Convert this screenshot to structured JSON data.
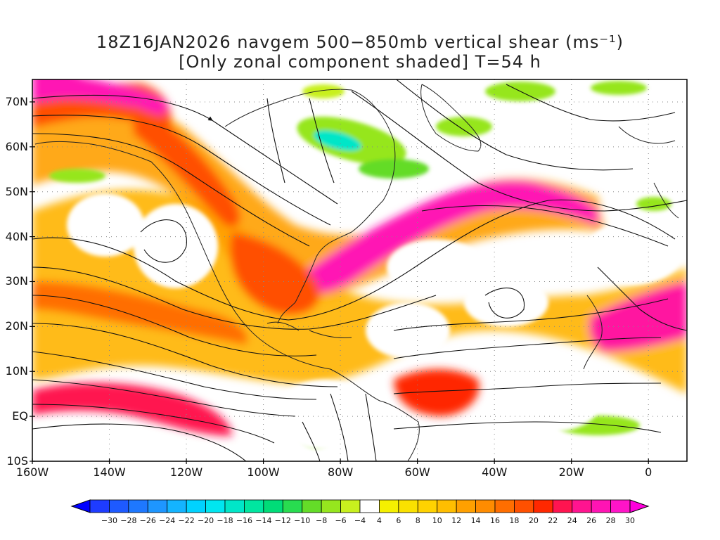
{
  "title": {
    "line1": "18Z16JAN2026 navgem 500−850mb vertical shear (ms⁻¹)",
    "line2": "[Only zonal component shaded] T=54 h"
  },
  "map": {
    "lon_range": [
      -160,
      10
    ],
    "lat_range": [
      -10,
      75
    ],
    "y_ticks": [
      {
        "lat": 70,
        "label": "70N"
      },
      {
        "lat": 60,
        "label": "60N"
      },
      {
        "lat": 50,
        "label": "50N"
      },
      {
        "lat": 40,
        "label": "40N"
      },
      {
        "lat": 30,
        "label": "30N"
      },
      {
        "lat": 20,
        "label": "20N"
      },
      {
        "lat": 10,
        "label": "10N"
      },
      {
        "lat": 0,
        "label": "EQ"
      },
      {
        "lat": -10,
        "label": "10S"
      }
    ],
    "x_ticks": [
      {
        "lon": -160,
        "label": "160W"
      },
      {
        "lon": -140,
        "label": "140W"
      },
      {
        "lon": -120,
        "label": "120W"
      },
      {
        "lon": -100,
        "label": "100W"
      },
      {
        "lon": -80,
        "label": "80W"
      },
      {
        "lon": -60,
        "label": "60W"
      },
      {
        "lon": -40,
        "label": "40W"
      },
      {
        "lon": -20,
        "label": "20W"
      },
      {
        "lon": 0,
        "label": "0"
      }
    ],
    "grid": "dotted",
    "layers": [
      "zonal-shear-shading",
      "streamlines",
      "coastlines"
    ]
  },
  "colorbar": {
    "labels": [
      "−30",
      "−28",
      "−26",
      "−24",
      "−22",
      "−20",
      "−18",
      "−16",
      "−14",
      "−12",
      "−10",
      "−8",
      "−6",
      "−4",
      "4",
      "6",
      "8",
      "10",
      "12",
      "14",
      "16",
      "18",
      "20",
      "22",
      "24",
      "26",
      "28",
      "30"
    ],
    "colors": [
      "#1e3cff",
      "#1e5aff",
      "#1e78ff",
      "#1e96ff",
      "#14b4ff",
      "#00d2ff",
      "#00e6f0",
      "#00e6c8",
      "#00e6a0",
      "#00dc78",
      "#28dc50",
      "#64dc28",
      "#96e61e",
      "#c8f01e",
      "#ffffff",
      "#f5f000",
      "#fae100",
      "#ffd200",
      "#ffbe00",
      "#ffa000",
      "#ff8c00",
      "#ff6e00",
      "#ff5000",
      "#ff2800",
      "#ff1450",
      "#ff1490",
      "#ff14b4",
      "#ff14c8"
    ],
    "under_color": "#0000ff",
    "over_color": "#ff00dc"
  }
}
